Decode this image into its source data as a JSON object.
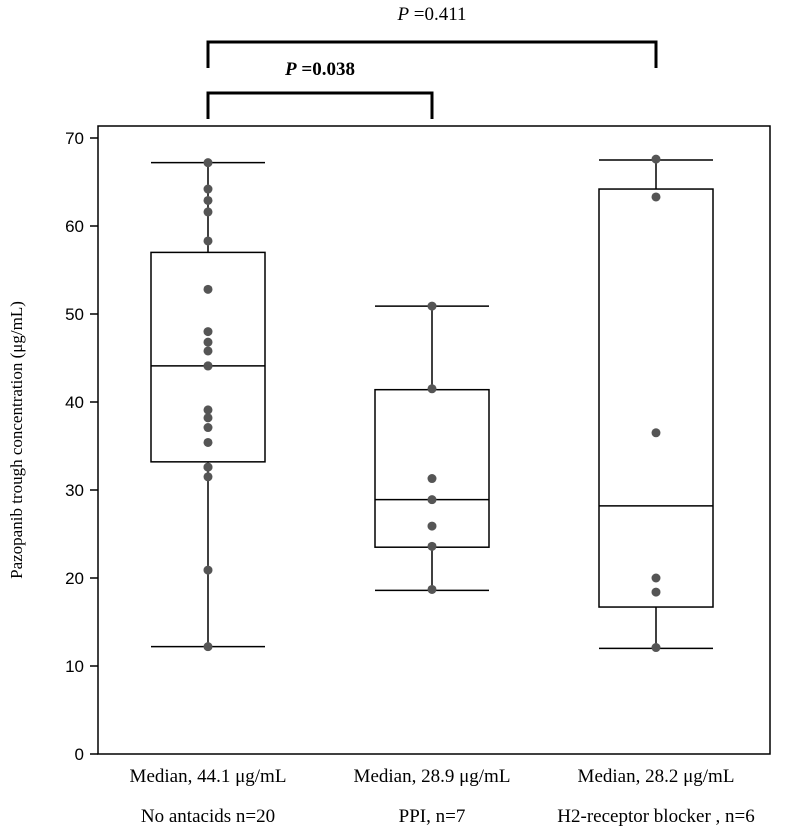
{
  "chart_data": {
    "type": "box",
    "ylabel": "Pazopanib trough concentration (μg/mL)",
    "ylim": [
      0,
      70
    ],
    "yticks": [
      0,
      10,
      20,
      30,
      40,
      50,
      60,
      70
    ],
    "grid": false,
    "groups": [
      {
        "median_label": "Median, 44.1 μg/mL",
        "name_label": "No antacids n=20",
        "whisker_low": 12.2,
        "q1": 33.2,
        "median": 44.1,
        "q3": 57.0,
        "whisker_high": 67.2,
        "points": [
          67.2,
          64.2,
          62.9,
          61.6,
          58.3,
          52.8,
          48.0,
          46.8,
          45.8,
          44.1,
          44.1,
          39.1,
          38.2,
          37.1,
          35.4,
          32.6,
          32.6,
          31.5,
          20.9,
          12.2
        ]
      },
      {
        "median_label": "Median, 28.9 μg/mL",
        "name_label": "PPI, n=7",
        "whisker_low": 18.6,
        "q1": 23.5,
        "median": 28.9,
        "q3": 41.4,
        "whisker_high": 50.9,
        "points": [
          50.9,
          41.5,
          31.3,
          28.9,
          25.9,
          23.6,
          18.7
        ]
      },
      {
        "median_label": "Median, 28.2 μg/mL",
        "name_label": "H2-receptor blocker ,  n=6",
        "whisker_low": 12.0,
        "q1": 16.7,
        "median": 28.2,
        "q3": 64.2,
        "whisker_high": 67.5,
        "points": [
          67.6,
          63.3,
          36.5,
          20.0,
          18.4,
          12.1
        ]
      }
    ],
    "comparisons": [
      {
        "from": 0,
        "to": 2,
        "p_italic": "P",
        "p_value": " =0.411",
        "bold": false
      },
      {
        "from": 0,
        "to": 1,
        "p_italic": "P",
        "p_value": " =0.038",
        "bold": true
      }
    ]
  },
  "colors": {
    "axis": "#000000",
    "box_stroke": "#000000",
    "point_fill": "#555555"
  }
}
